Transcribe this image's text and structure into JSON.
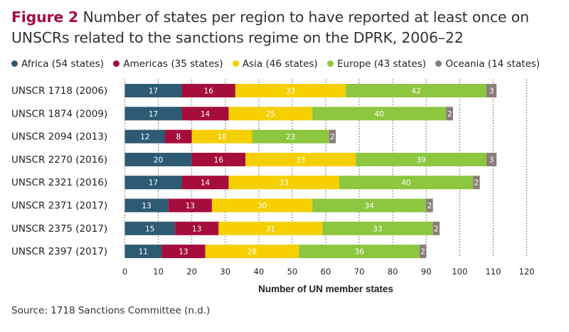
{
  "figure_label": "Figure 2",
  "title": "Number of states per region to have reported at least once on UNSCRs related to the sanctions regime on the DPRK, 2006–22",
  "source": "Source: 1718 Sanctions Committee (n.d.)",
  "chart_data": {
    "type": "bar",
    "orientation": "horizontal",
    "stacked": true,
    "categories": [
      "UNSCR 1718 (2006)",
      "UNSCR 1874 (2009)",
      "UNSCR 2094 (2013)",
      "UNSCR 2270 (2016)",
      "UNSCR 2321 (2016)",
      "UNSCR 2371 (2017)",
      "UNSCR 2375 (2017)",
      "UNSCR 2397 (2017)"
    ],
    "series": [
      {
        "name": "Africa",
        "legend": "Africa (54 states)",
        "color": "#2e5a74",
        "values": [
          17,
          17,
          12,
          20,
          17,
          13,
          15,
          11
        ]
      },
      {
        "name": "Americas",
        "legend": "Americas (35 states)",
        "color": "#a50d3c",
        "values": [
          16,
          14,
          8,
          16,
          14,
          13,
          13,
          13
        ]
      },
      {
        "name": "Asia",
        "legend": "Asia (46 states)",
        "color": "#f5cf00",
        "values": [
          33,
          25,
          18,
          33,
          33,
          30,
          31,
          28
        ]
      },
      {
        "name": "Europe",
        "legend": "Europe (43 states)",
        "color": "#8dc63f",
        "values": [
          42,
          40,
          23,
          39,
          40,
          34,
          33,
          36
        ]
      },
      {
        "name": "Oceania",
        "legend": "Oceania (14 states)",
        "color": "#8a7d7b",
        "values": [
          3,
          2,
          2,
          3,
          2,
          2,
          2,
          2
        ]
      }
    ],
    "xlabel": "Number of UN member states",
    "xlim": [
      0,
      120
    ],
    "xticks": [
      0,
      10,
      20,
      30,
      40,
      50,
      60,
      70,
      80,
      90,
      100,
      110,
      120
    ],
    "grid": "dotted vertical",
    "legend_position": "top"
  }
}
